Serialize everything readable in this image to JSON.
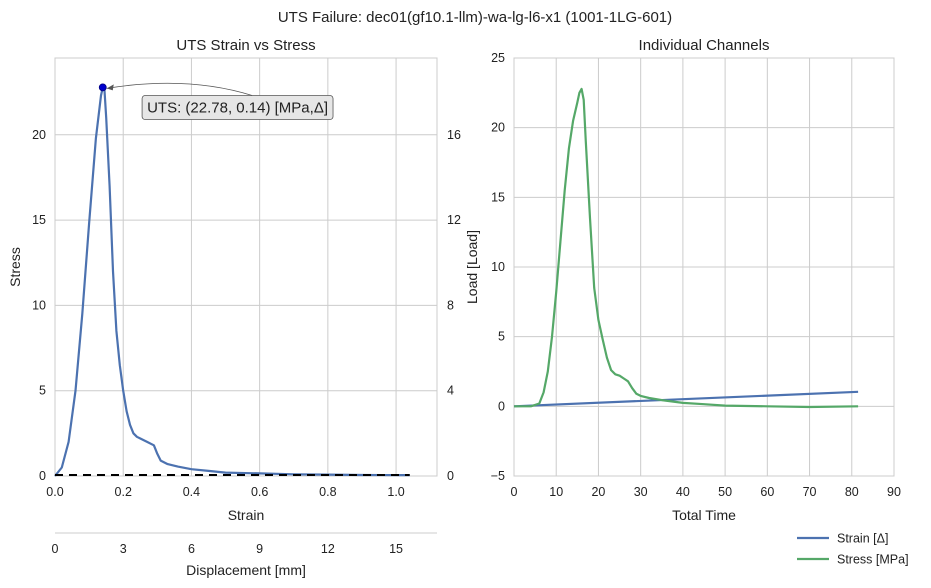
{
  "figure": {
    "suptitle": "UTS Failure: dec01(gf10.1-llm)-wa-lg-l6-x1 (1001-1LG-601)"
  },
  "chart_data": [
    {
      "type": "line",
      "title": "UTS Strain vs Stress",
      "xlabel": "Strain",
      "ylabel": "Stress",
      "xlim": [
        0.0,
        1.12
      ],
      "ylim": [
        0,
        24.5
      ],
      "xticks": [
        0.0,
        0.2,
        0.4,
        0.6,
        0.8,
        1.0
      ],
      "xtick_labels": [
        "0.0",
        "0.2",
        "0.4",
        "0.6",
        "0.8",
        "1.0"
      ],
      "yticks": [
        0,
        5,
        10,
        15,
        20
      ],
      "ytick_labels": [
        "0",
        "5",
        "10",
        "15",
        "20"
      ],
      "secondary_y": {
        "label": "Load [Load]",
        "ticks": [
          0,
          4,
          8,
          12,
          16
        ],
        "tick_labels": [
          "0",
          "4",
          "8",
          "12",
          "16"
        ],
        "lim": [
          0,
          19.6
        ]
      },
      "secondary_x": {
        "label": "Displacement [mm]",
        "ticks": [
          0,
          3,
          6,
          9,
          12,
          15
        ],
        "tick_labels": [
          "0",
          "3",
          "6",
          "9",
          "12",
          "15"
        ],
        "lim": [
          0,
          16.8
        ]
      },
      "grid": true,
      "series": [
        {
          "color": "#4c72b0",
          "x": [
            0.0,
            0.02,
            0.04,
            0.06,
            0.08,
            0.1,
            0.12,
            0.135,
            0.14,
            0.145,
            0.15,
            0.16,
            0.17,
            0.18,
            0.19,
            0.2,
            0.21,
            0.22,
            0.23,
            0.24,
            0.25,
            0.27,
            0.29,
            0.3,
            0.31,
            0.33,
            0.36,
            0.4,
            0.45,
            0.5,
            0.6,
            0.7,
            0.8,
            0.9,
            1.0,
            1.04
          ],
          "y": [
            0.0,
            0.5,
            2.0,
            5.0,
            9.5,
            14.8,
            19.8,
            22.3,
            22.78,
            22.6,
            21.0,
            17.0,
            12.0,
            8.5,
            6.5,
            5.0,
            3.8,
            3.0,
            2.5,
            2.3,
            2.2,
            2.0,
            1.8,
            1.3,
            0.9,
            0.7,
            0.55,
            0.4,
            0.3,
            0.2,
            0.15,
            0.1,
            0.08,
            0.06,
            0.05,
            0.05
          ]
        }
      ],
      "reference_line": {
        "style": "dashed",
        "color": "#000000",
        "x": [
          0.0,
          1.04
        ],
        "y": [
          0.0,
          0.0
        ]
      },
      "uts_point": {
        "x": 0.14,
        "y": 22.78,
        "color": "#0000cc"
      },
      "annotation": {
        "text": "UTS: (22.78, 0.14) [MPa,Δ]",
        "x": 0.14,
        "y": 22.78,
        "text_anchor_x": 0.27,
        "text_anchor_y": 21.6
      }
    },
    {
      "type": "line",
      "title": "Individual Channels",
      "xlabel": "Total Time",
      "ylabel": "",
      "xlim": [
        0,
        90
      ],
      "ylim": [
        -5,
        25
      ],
      "xticks": [
        0,
        10,
        20,
        30,
        40,
        50,
        60,
        70,
        80,
        90
      ],
      "xtick_labels": [
        "0",
        "10",
        "20",
        "30",
        "40",
        "50",
        "60",
        "70",
        "80",
        "90"
      ],
      "yticks": [
        -5,
        0,
        5,
        10,
        15,
        20,
        25
      ],
      "ytick_labels": [
        "−5",
        "0",
        "5",
        "10",
        "15",
        "20",
        "25"
      ],
      "grid": true,
      "legend": "lower-right outside",
      "series": [
        {
          "name": "Strain [Δ]",
          "color": "#4c72b0",
          "x": [
            0,
            81.5
          ],
          "y": [
            0.0,
            1.04
          ]
        },
        {
          "name": "Stress [MPa]",
          "color": "#55a868",
          "x": [
            0,
            2,
            4,
            6,
            7,
            8,
            9,
            10,
            11,
            12,
            13,
            14,
            15,
            15.5,
            16,
            16.5,
            17,
            18,
            19,
            20,
            21,
            22,
            23,
            24,
            25,
            26,
            27,
            28,
            29,
            30,
            32,
            35,
            40,
            45,
            50,
            60,
            70,
            81.5
          ],
          "y": [
            0.0,
            0.0,
            0.0,
            0.2,
            1.0,
            2.5,
            5.0,
            8.2,
            11.8,
            15.5,
            18.5,
            20.5,
            21.8,
            22.5,
            22.78,
            22.0,
            19.0,
            13.5,
            8.5,
            6.2,
            4.8,
            3.5,
            2.6,
            2.3,
            2.2,
            2.0,
            1.8,
            1.3,
            0.9,
            0.75,
            0.6,
            0.45,
            0.25,
            0.15,
            0.05,
            0.0,
            -0.05,
            0.0
          ]
        }
      ]
    }
  ]
}
